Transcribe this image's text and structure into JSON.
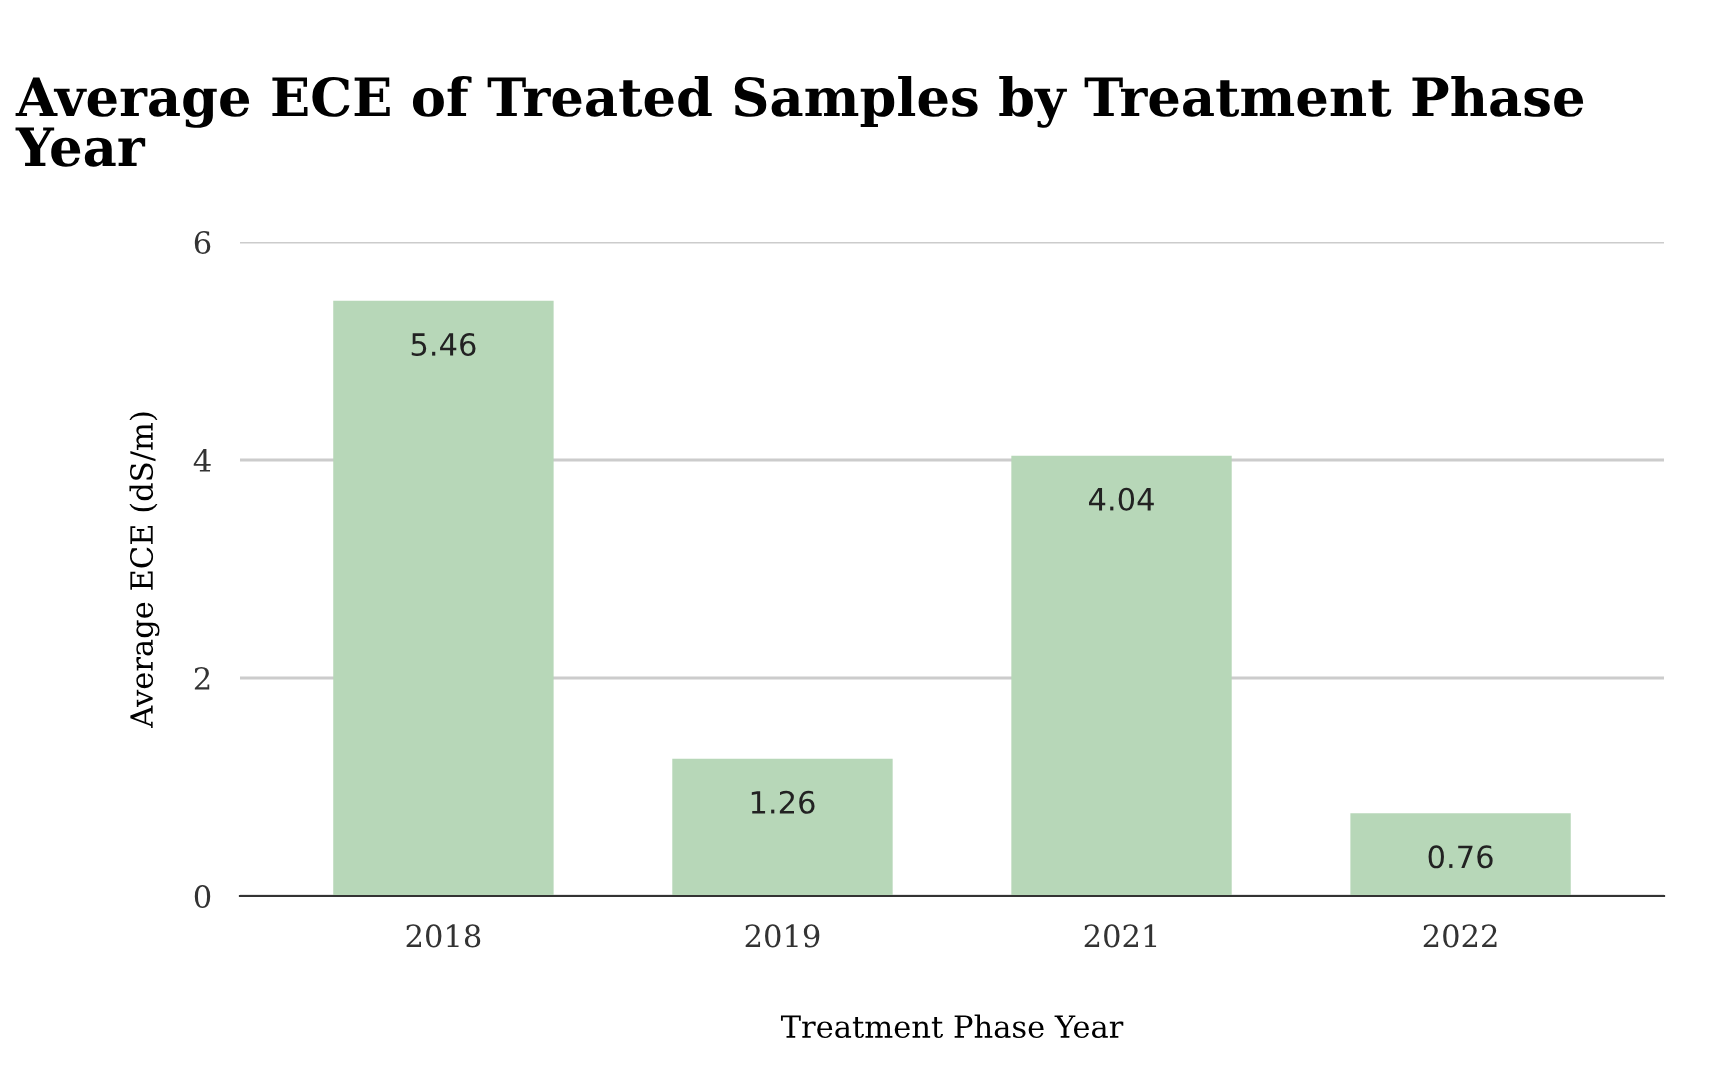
{
  "chart_data": {
    "type": "bar",
    "title": "Average ECE of Treated Samples by Treatment Phase Year",
    "xlabel": "Treatment Phase Year",
    "ylabel": "Average ECE (dS/m)",
    "categories": [
      "2018",
      "2019",
      "2021",
      "2022"
    ],
    "values": [
      5.46,
      1.26,
      4.04,
      0.76
    ],
    "color": "#b7d7b8",
    "ylim": [
      0,
      6
    ],
    "yticks": [
      0,
      2,
      4,
      6
    ],
    "grid": "y",
    "data_labels": true
  }
}
